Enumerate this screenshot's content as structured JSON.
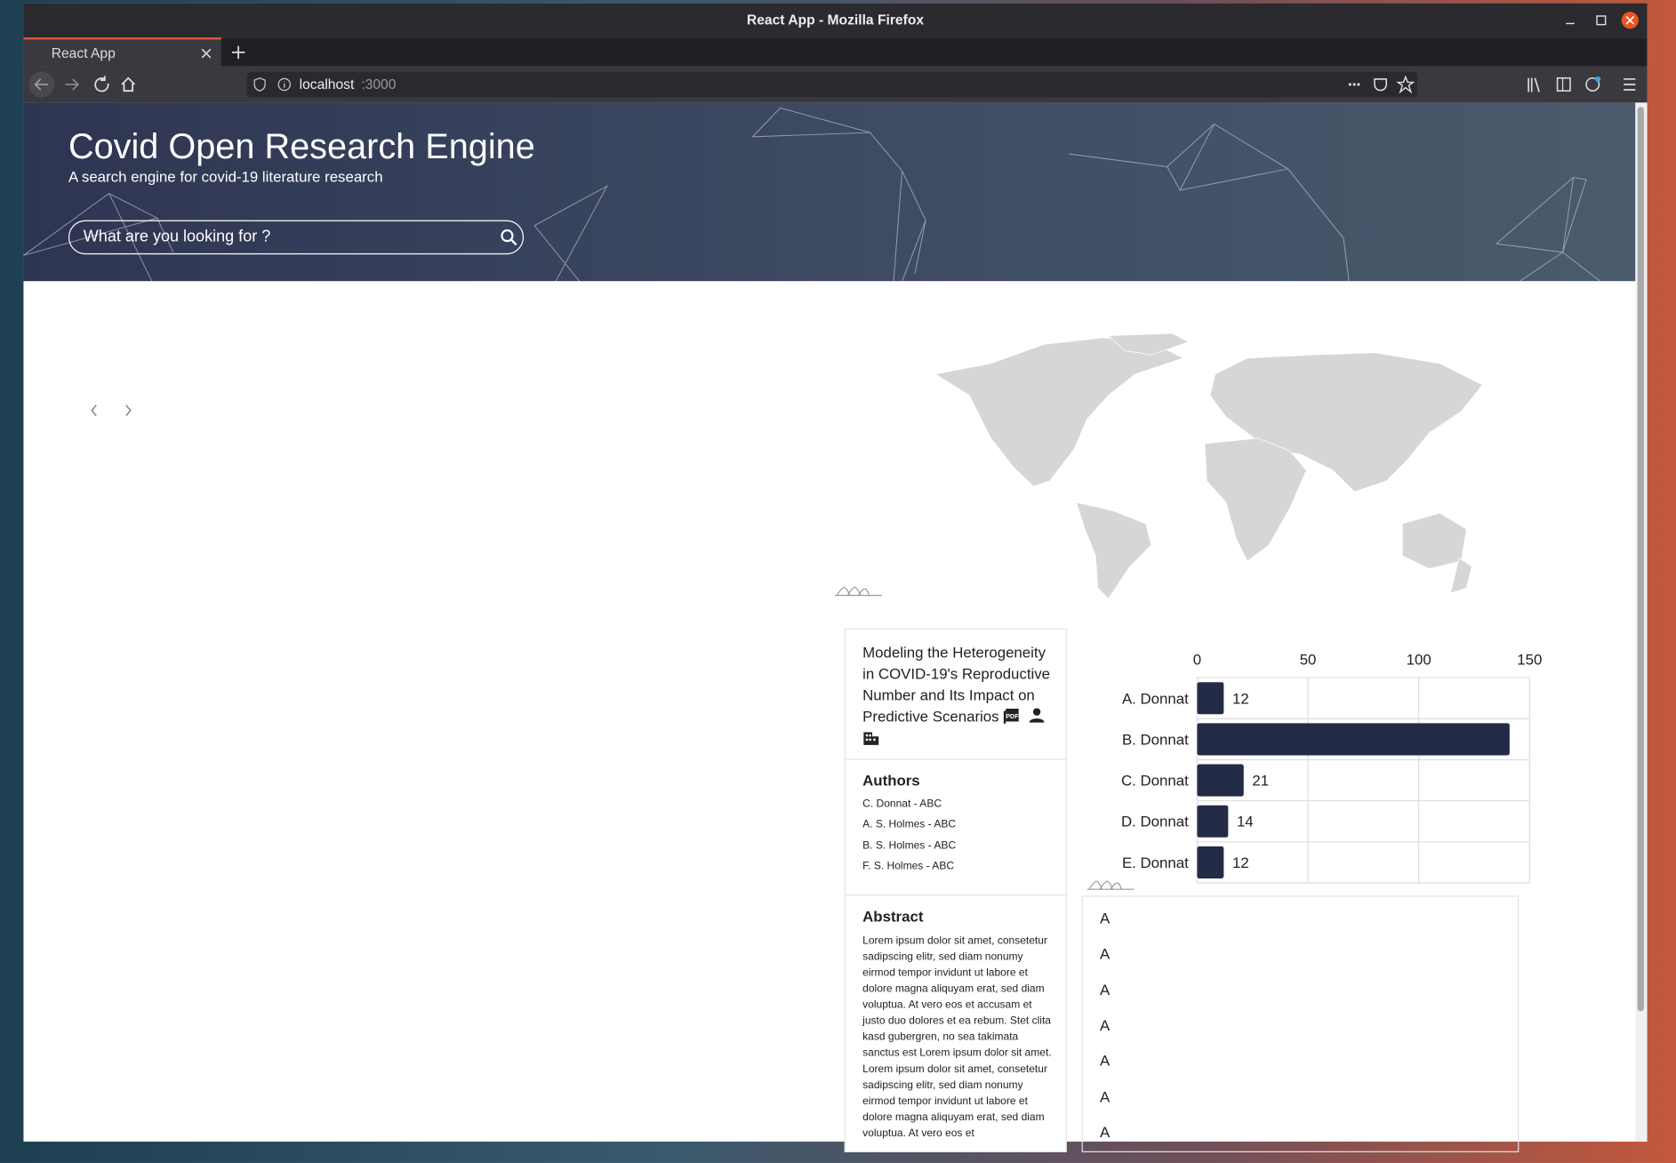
{
  "browser": {
    "window_title": "React App - Mozilla Firefox",
    "tab_title": "React App",
    "url_host": "localhost",
    "url_port": ":3000"
  },
  "header": {
    "title": "Covid Open Research Engine",
    "subtitle": "A search engine for covid-19 literature research",
    "search_placeholder": "What are you looking for ?"
  },
  "paper": {
    "title": "Modeling the Heterogeneity in COVID-19's Reproductive Number and Its Impact on Predictive Scenarios",
    "authors_heading": "Authors",
    "authors": [
      "C. Donnat - ABC",
      "A. S. Holmes - ABC",
      "B. S. Holmes - ABC",
      "F. S. Holmes - ABC"
    ],
    "abstract_heading": "Abstract",
    "abstract": "Lorem ipsum dolor sit amet, consetetur sadipscing elitr, sed diam nonumy eirmod tempor invidunt ut labore et dolore magna aliquyam erat, sed diam voluptua. At vero eos et accusam et justo duo dolores et ea rebum. Stet clita kasd gubergren, no sea takimata sanctus est Lorem ipsum dolor sit amet. Lorem ipsum dolor sit amet, consetetur sadipscing elitr, sed diam nonumy eirmod tempor invidunt ut labore et dolore magna aliquyam erat, sed diam voluptua. At vero eos et"
  },
  "chart_data": {
    "type": "bar",
    "orientation": "horizontal",
    "categories": [
      "A. Donnat",
      "B. Donnat",
      "C. Donnat",
      "D. Donnat",
      "E. Donnat"
    ],
    "values": [
      12,
      141,
      21,
      14,
      12
    ],
    "color": "#232b47",
    "xlim": [
      0,
      150
    ],
    "xticks": [
      0,
      50,
      100,
      150
    ],
    "grid": true
  },
  "list": {
    "items": [
      "A",
      "A",
      "A",
      "A",
      "A",
      "A",
      "A"
    ]
  }
}
